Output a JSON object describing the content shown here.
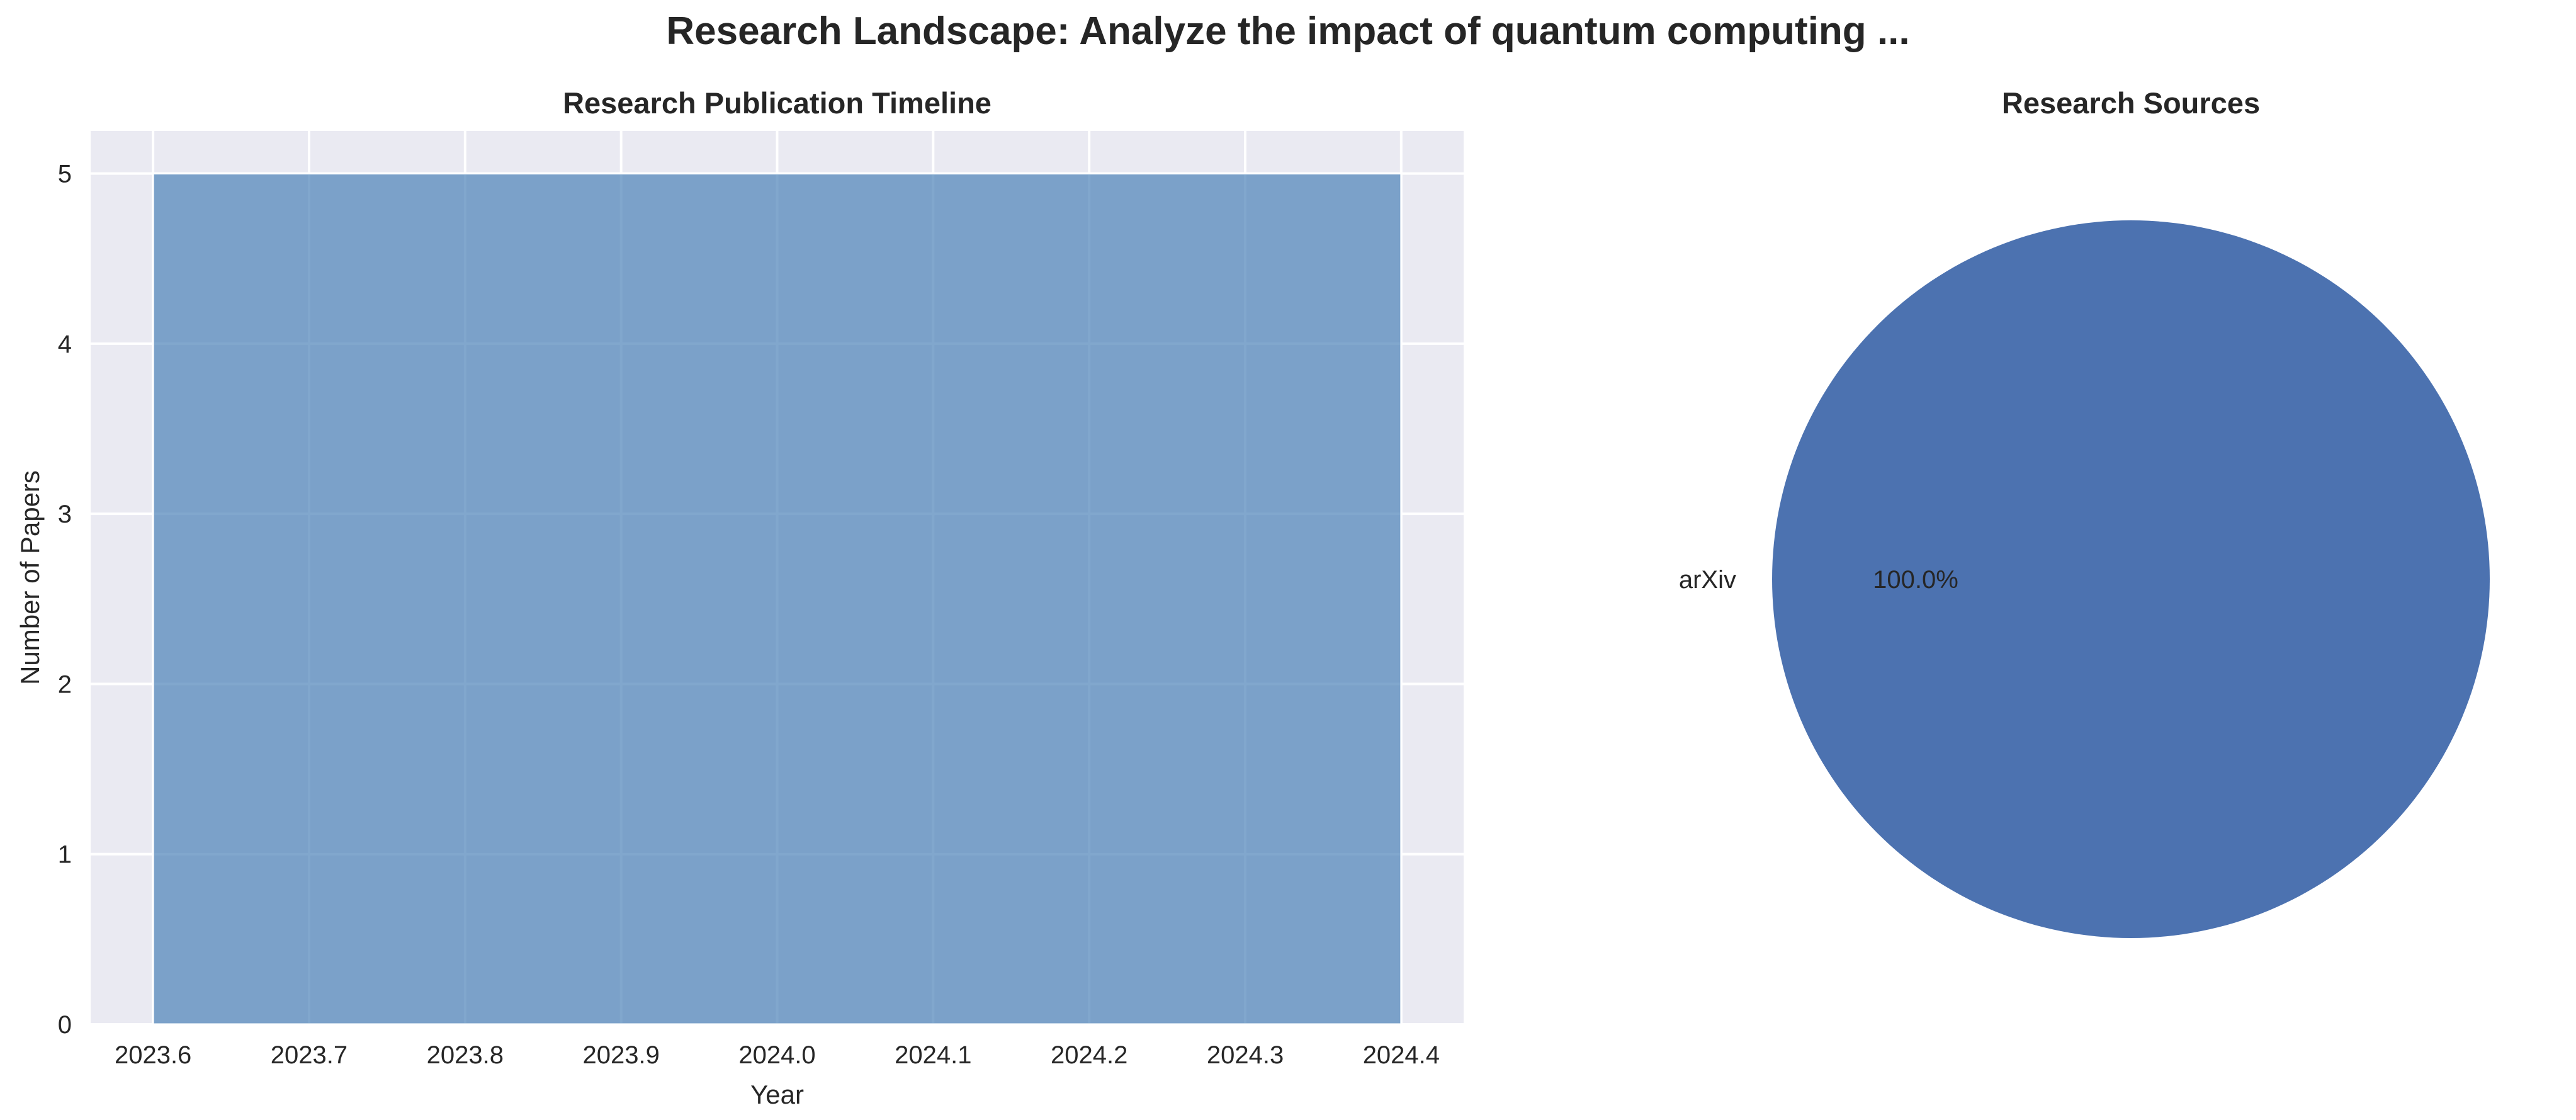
{
  "figure": {
    "suptitle": "Research Landscape: Analyze the impact of quantum computing ..."
  },
  "chart_data": [
    {
      "type": "bar",
      "title": "Research Publication Timeline",
      "xlabel": "Year",
      "ylabel": "Number of Papers",
      "bars": [
        {
          "x_start": 2023.6,
          "x_end": 2024.4,
          "value": 5
        }
      ],
      "xlim": [
        2023.56,
        2024.44
      ],
      "ylim": [
        0,
        5.25
      ],
      "xticks": [
        2023.6,
        2023.7,
        2023.8,
        2023.9,
        2024.0,
        2024.1,
        2024.2,
        2024.3,
        2024.4
      ],
      "xtick_labels": [
        "2023.6",
        "2023.7",
        "2023.8",
        "2023.9",
        "2024.0",
        "2024.1",
        "2024.2",
        "2024.3",
        "2024.4"
      ],
      "yticks": [
        0,
        1,
        2,
        3,
        4,
        5
      ],
      "ytick_labels": [
        "0",
        "1",
        "2",
        "3",
        "4",
        "5"
      ],
      "grid": true,
      "colors": {
        "bar": "#4c82b8",
        "bar_opacity": 0.7,
        "background": "#eaeaf2",
        "grid": "#ffffff"
      }
    },
    {
      "type": "pie",
      "title": "Research Sources",
      "slices": [
        {
          "label": "arXiv",
          "value": 100.0,
          "pct_label": "100.0%",
          "color": "#4c72b0"
        }
      ]
    }
  ]
}
